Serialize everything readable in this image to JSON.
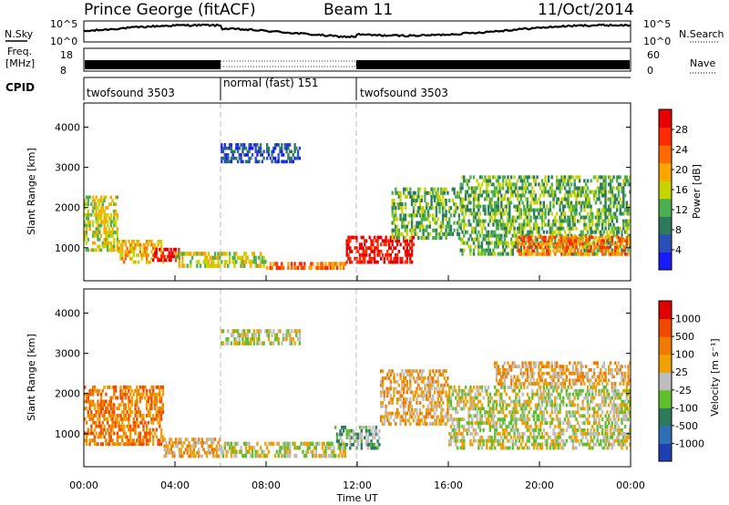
{
  "header": {
    "title": "Prince George (fitACF)",
    "beam": "Beam 11",
    "date": "11/Oct/2014"
  },
  "noise_panel": {
    "left_label": "N.Sky",
    "right_label": "N.Search",
    "left_ticks": [
      "10^5",
      "10^0"
    ],
    "right_ticks": [
      "10^5",
      "10^0"
    ]
  },
  "freq_panel": {
    "left_label_line1": "Freq.",
    "left_label_line2": "[MHz]",
    "left_ticks": [
      "18",
      "8"
    ],
    "right_ticks": [
      "60",
      "0"
    ],
    "right_label": "Nave"
  },
  "cpid_panel": {
    "label": "CPID",
    "segments": [
      {
        "name": "twofsound 3503",
        "start_hour": 0,
        "end_hour": 6
      },
      {
        "name": "normal (fast) 151",
        "start_hour": 6,
        "end_hour": 12
      },
      {
        "name": "twofsound 3503",
        "start_hour": 12,
        "end_hour": 24
      }
    ]
  },
  "colors": {
    "power_scale": [
      "#1a1aff",
      "#2a4fb8",
      "#2e7a5c",
      "#4caf50",
      "#c7d400",
      "#ffa500",
      "#ff6a00",
      "#ff2a00",
      "#e60000"
    ],
    "velocity_scale": [
      "#1f3fb5",
      "#2f6fb8",
      "#2e7a5c",
      "#5fbf2a",
      "#bdbdbd",
      "#f0a000",
      "#f07a00",
      "#f04a00",
      "#e00000"
    ]
  },
  "chart_data": [
    {
      "type": "heatmap",
      "name": "power",
      "ylabel": "Slant Range [km]",
      "x_ticks": [
        "00:00",
        "04:00",
        "08:00",
        "12:00",
        "16:00",
        "20:00",
        "00:00"
      ],
      "x_hours": [
        0,
        4,
        8,
        12,
        16,
        20,
        24
      ],
      "xlim_hours": [
        0,
        24
      ],
      "y_ticks": [
        1000,
        2000,
        3000,
        4000
      ],
      "ylim": [
        180,
        4600
      ],
      "colorbar_label": "Power [dB]",
      "colorbar_ticks": [
        "28",
        "24",
        "20",
        "16",
        "12",
        "8",
        "4"
      ],
      "bands": [
        {
          "from": 0.0,
          "to": 1.5,
          "range_min": 900,
          "range_max": 2300,
          "level": 4
        },
        {
          "from": 1.5,
          "to": 3.5,
          "range_min": 600,
          "range_max": 1200,
          "level": 5
        },
        {
          "from": 3.0,
          "to": 4.2,
          "range_min": 650,
          "range_max": 1000,
          "level": 8
        },
        {
          "from": 4.0,
          "to": 8.0,
          "range_min": 500,
          "range_max": 900,
          "level": 4
        },
        {
          "from": 8.0,
          "to": 11.5,
          "range_min": 450,
          "range_max": 650,
          "level": 6
        },
        {
          "from": 11.5,
          "to": 14.5,
          "range_min": 600,
          "range_max": 1300,
          "level": 8
        },
        {
          "from": 13.5,
          "to": 16.5,
          "range_min": 1200,
          "range_max": 2500,
          "level": 3
        },
        {
          "from": 16.5,
          "to": 24.0,
          "range_min": 800,
          "range_max": 2800,
          "level": 3
        },
        {
          "from": 19.0,
          "to": 24.0,
          "range_min": 800,
          "range_max": 1300,
          "level": 6
        },
        {
          "from": 6.0,
          "to": 9.5,
          "range_min": 3100,
          "range_max": 3600,
          "level": 1
        }
      ]
    },
    {
      "type": "heatmap",
      "name": "velocity",
      "ylabel": "Slant Range [km]",
      "xlabel": "Time UT",
      "x_ticks": [
        "00:00",
        "04:00",
        "08:00",
        "12:00",
        "16:00",
        "20:00",
        "00:00"
      ],
      "x_hours": [
        0,
        4,
        8,
        12,
        16,
        20,
        24
      ],
      "xlim_hours": [
        0,
        24
      ],
      "y_ticks": [
        1000,
        2000,
        3000,
        4000
      ],
      "ylim": [
        180,
        4600
      ],
      "colorbar_label": "Velocity [m s⁻¹]",
      "colorbar_ticks": [
        "1000",
        "500",
        "100",
        "25",
        "-25",
        "-100",
        "-500",
        "-1000"
      ],
      "bands": [
        {
          "from": 0.0,
          "to": 3.5,
          "range_min": 700,
          "range_max": 2200,
          "level": 6
        },
        {
          "from": 3.5,
          "to": 6.0,
          "range_min": 400,
          "range_max": 900,
          "level": 5
        },
        {
          "from": 6.0,
          "to": 11.5,
          "range_min": 400,
          "range_max": 800,
          "level": 4
        },
        {
          "from": 6.0,
          "to": 9.5,
          "range_min": 3200,
          "range_max": 3600,
          "level": 4
        },
        {
          "from": 11.0,
          "to": 13.0,
          "range_min": 600,
          "range_max": 1200,
          "level": 3
        },
        {
          "from": 13.0,
          "to": 16.0,
          "range_min": 1200,
          "range_max": 2600,
          "level": 5
        },
        {
          "from": 16.0,
          "to": 24.0,
          "range_min": 600,
          "range_max": 2200,
          "level": 4
        },
        {
          "from": 18.0,
          "to": 24.0,
          "range_min": 2200,
          "range_max": 2800,
          "level": 5
        }
      ]
    }
  ]
}
